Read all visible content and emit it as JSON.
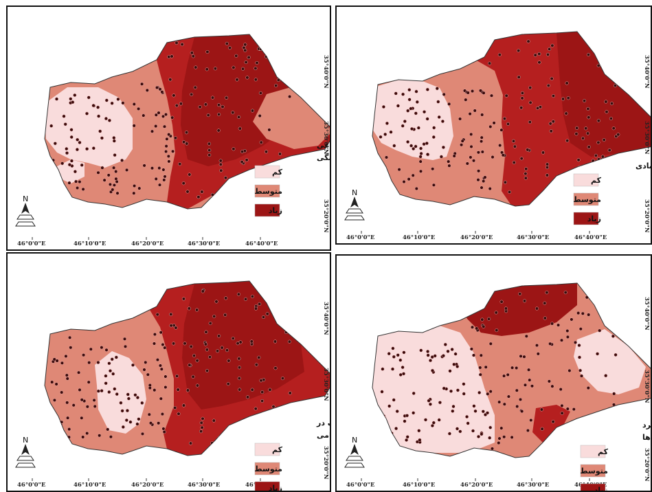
{
  "colors": {
    "low": "#f9dcdc",
    "medium": "#df8876",
    "high": "#b51f1f",
    "high_dark": "#9c1515",
    "border": "#333333",
    "point": "#3b0a0a"
  },
  "icons": {
    "north_arrow": "north-arrow-icon"
  },
  "maps": [
    {
      "id": "social-cultural",
      "title_lines": [
        "ضعف ٔهای اجتماعی",
        "فرهنگی"
      ],
      "legend": [
        "کم",
        "متوسط",
        "زیاد"
      ],
      "north": "N",
      "x_ticks": [
        "46°0'0\"E",
        "46°10'0\"E",
        "46°20'0\"E",
        "46°30'0\"E",
        "46°40'0\"E"
      ],
      "y_ticks": [
        "35°40'0\"N",
        "35°30'0\"N",
        "35°20'0\"N"
      ]
    },
    {
      "id": "economic",
      "title_lines": [
        "نارسایی های اقتصادی"
      ],
      "legend": [
        "کم",
        "متوسط",
        "زیاد"
      ],
      "north": "N",
      "x_ticks": [
        "46°0'0\"E",
        "46°10'0\"E",
        "46°20'0\"E",
        "46°30'0\"E",
        "46°40'0\"E"
      ],
      "y_ticks": [
        "35°40'0\"N",
        "35°30'0\"N",
        "35°20'0\"N"
      ]
    },
    {
      "id": "police-performance",
      "title_lines": [
        "ضعف در",
        "عملکرد نیروی انتظامی"
      ],
      "legend": [
        "کم",
        "متوسط",
        "زیاد"
      ],
      "north": "N",
      "x_ticks": [
        "46°0'0\"E",
        "46°10'0\"E",
        "46°20'0\"E",
        "46°30'0\"E",
        "46°40'0\"E"
      ],
      "y_ticks": [
        "35°40'0\"N",
        "35°30'0\"N",
        "35°20'0\"N"
      ]
    },
    {
      "id": "media-performance",
      "title_lines": [
        "نارسایی در عملکرد",
        "رسانه ها"
      ],
      "legend": [
        "کم",
        "متوسط",
        "زیاد"
      ],
      "north": "N",
      "x_ticks": [
        "46°0'0\"E",
        "46°10'0\"E",
        "46°20'0\"E",
        "46°30'0\"E",
        "46°40'0\"E"
      ],
      "y_ticks": [
        "35°40'0\"N",
        "35°30'0\"N",
        "35°20'0\"N"
      ]
    }
  ]
}
